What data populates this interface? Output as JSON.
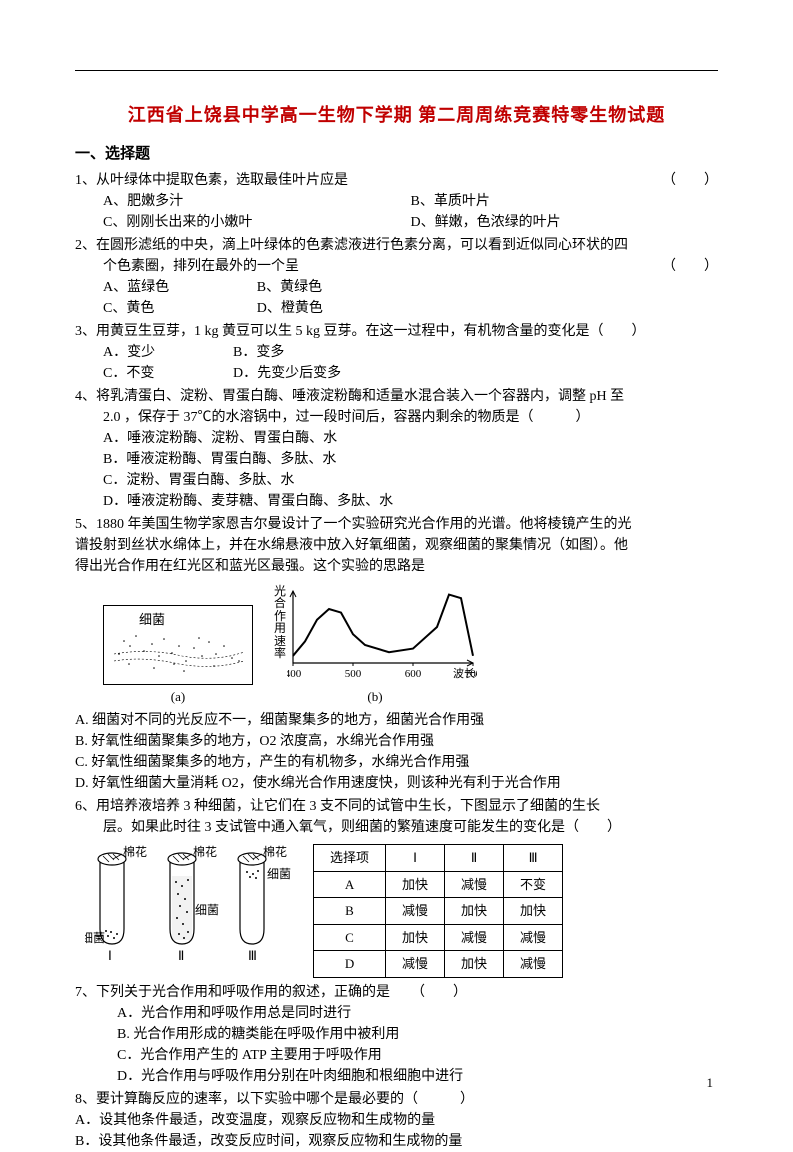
{
  "title": "江西省上饶县中学高一生物下学期 第二周周练竞赛特零生物试题",
  "section_heading": "一、选择题",
  "q1": {
    "stem": "1、从叶绿体中提取色素，选取最佳叶片应是",
    "paren": "（　　）",
    "a": "A、肥嫩多汁",
    "b": "B、革质叶片",
    "c": "C、刚刚长出来的小嫩叶",
    "d": "D、鲜嫩，色浓绿的叶片"
  },
  "q2": {
    "stem1": "2、在圆形滤纸的中央，滴上叶绿体的色素滤液进行色素分离，可以看到近似同心环状的四",
    "stem2": "个色素圈，排列在最外的一个呈",
    "paren": "（　　）",
    "a": "A、蓝绿色",
    "b": "B、黄绿色",
    "c": "C、黄色",
    "d": "D、橙黄色"
  },
  "q3": {
    "stem": "3、用黄豆生豆芽，1 kg 黄豆可以生 5 kg 豆芽。在这一过程中，有机物含量的变化是（　　）",
    "a": "A．变少",
    "b": "B．变多",
    "c": "C．不变",
    "d": "D．先变少后变多"
  },
  "q4": {
    "stem1": "4、将乳清蛋白、淀粉、胃蛋白酶、唾液淀粉酶和适量水混合装入一个容器内，调整 pH 至",
    "stem2": "2.0 ，保存于 37℃的水溶锅中，过一段时间后，容器内剩余的物质是（　　　）",
    "a": "A．唾液淀粉酶、淀粉、胃蛋白酶、水",
    "b": "B．唾液淀粉酶、胃蛋白酶、多肽、水",
    "c": "C．淀粉、胃蛋白酶、多肽、水",
    "d": "D．唾液淀粉酶、麦芽糖、胃蛋白酶、多肽、水"
  },
  "q5": {
    "stem1": "5、1880 年美国生物学家恩吉尔曼设计了一个实验研究光合作用的光谱。他将棱镜产生的光",
    "stem2": "谱投射到丝状水绵体上，并在水绵悬液中放入好氧细菌，观察细菌的聚集情况（如图）。他",
    "stem3": "得出光合作用在红光区和蓝光区最强。这个实验的思路是",
    "panel_a_label": "(a)",
    "panel_a_text": "细菌",
    "panel_b_label": "(b)",
    "ylabel": "光合作用速率",
    "xlabel": "波长/nm",
    "xticks": [
      "700",
      "600",
      "500",
      "400"
    ],
    "a": "A. 细菌对不同的光反应不一，细菌聚集多的地方，细菌光合作用强",
    "b": "B. 好氧性细菌聚集多的地方，O2 浓度高，水绵光合作用强",
    "c": "C. 好氧性细菌聚集多的地方，产生的有机物多，水绵光合作用强",
    "d": "D. 好氧性细菌大量消耗 O2，使水绵光合作用速度快，则该种光有利于光合作用",
    "chart": {
      "type": "line",
      "width": 190,
      "height": 100,
      "xlim": [
        400,
        700
      ],
      "xtick_positions": [
        700,
        600,
        500,
        400
      ],
      "line_color": "#000000",
      "line_width": 2,
      "background_color": "#ffffff",
      "points": [
        [
          700,
          0.1
        ],
        [
          680,
          0.9
        ],
        [
          660,
          0.95
        ],
        [
          640,
          0.5
        ],
        [
          600,
          0.2
        ],
        [
          560,
          0.15
        ],
        [
          520,
          0.25
        ],
        [
          500,
          0.4
        ],
        [
          480,
          0.7
        ],
        [
          460,
          0.75
        ],
        [
          440,
          0.6
        ],
        [
          420,
          0.3
        ],
        [
          400,
          0.1
        ]
      ]
    }
  },
  "q6": {
    "stem1": "6、用培养液培养 3 种细菌，让它们在 3 支不同的试管中生长，下图显示了细菌的生长",
    "stem2": "层。如果此时往 3 支试管中通入氧气，则细菌的繁殖速度可能发生的变化是（　　）",
    "tube_labels": {
      "I": "Ⅰ",
      "II": "Ⅱ",
      "III": "Ⅲ",
      "cotton": "棉花",
      "bacteria": "细菌"
    },
    "table": {
      "headers": [
        "选择项",
        "Ⅰ",
        "Ⅱ",
        "Ⅲ"
      ],
      "rows": [
        [
          "A",
          "加快",
          "减慢",
          "不变"
        ],
        [
          "B",
          "减慢",
          "加快",
          "加快"
        ],
        [
          "C",
          "加快",
          "减慢",
          "减慢"
        ],
        [
          "D",
          "减慢",
          "加快",
          "减慢"
        ]
      ]
    }
  },
  "q7": {
    "stem": "7、下列关于光合作用和呼吸作用的叙述，正确的是　　（　　）",
    "a": "A．光合作用和呼吸作用总是同时进行",
    "b": "B. 光合作用形成的糖类能在呼吸作用中被利用",
    "c": "C．光合作用产生的 ATP 主要用于呼吸作用",
    "d": "D．光合作用与呼吸作用分别在叶肉细胞和根细胞中进行"
  },
  "q8": {
    "stem": "8、要计算酶反应的速率，以下实验中哪个是最必要的（　　　）",
    "a": "A．设其他条件最适，改变温度，观察反应物和生成物的量",
    "b": "B．设其他条件最适，改变反应时间，观察反应物和生成物的量"
  },
  "page_number": "1"
}
